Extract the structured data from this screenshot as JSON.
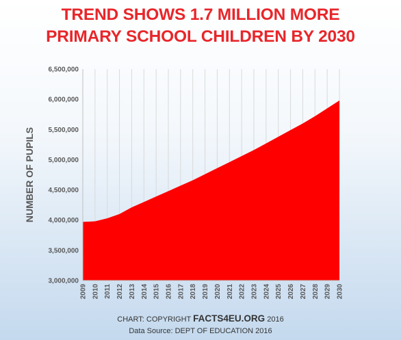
{
  "title": {
    "line1": "TREND SHOWS 1.7 MILLION MORE",
    "line2": "PRIMARY SCHOOL CHILDREN BY 2030"
  },
  "credits": {
    "copyright_prefix": "CHART: COPYRIGHT",
    "org": "FACTS4EU.ORG",
    "year": "2016",
    "source": "Data Source: DEPT OF EDUCATION 2016"
  },
  "colors": {
    "area": "#ff0000",
    "title": "#e8262a",
    "grid": "#d9d9d9",
    "tick_text": "#595959"
  },
  "chart_data": {
    "type": "area",
    "ylabel": "NUMBER OF PUPILS",
    "xlabel": "",
    "ylim": [
      3000000,
      6500000
    ],
    "yticks": [
      3000000,
      3500000,
      4000000,
      4500000,
      5000000,
      5500000,
      6000000,
      6500000
    ],
    "ytick_labels": [
      "3,000,000",
      "3,500,000",
      "4,000,000",
      "4,500,000",
      "5,000,000",
      "5,500,000",
      "6,000,000",
      "6,500,000"
    ],
    "grid": "vertical",
    "categories": [
      "2009",
      "2010",
      "2011",
      "2012",
      "2013",
      "2014",
      "2015",
      "2016",
      "2017",
      "2018",
      "2019",
      "2020",
      "2021",
      "2022",
      "2023",
      "2024",
      "2025",
      "2026",
      "2027",
      "2028",
      "2029",
      "2030"
    ],
    "values": [
      3970000,
      3980000,
      4030000,
      4100000,
      4210000,
      4300000,
      4390000,
      4480000,
      4570000,
      4660000,
      4760000,
      4860000,
      4960000,
      5060000,
      5160000,
      5270000,
      5380000,
      5490000,
      5600000,
      5720000,
      5850000,
      5980000
    ]
  }
}
